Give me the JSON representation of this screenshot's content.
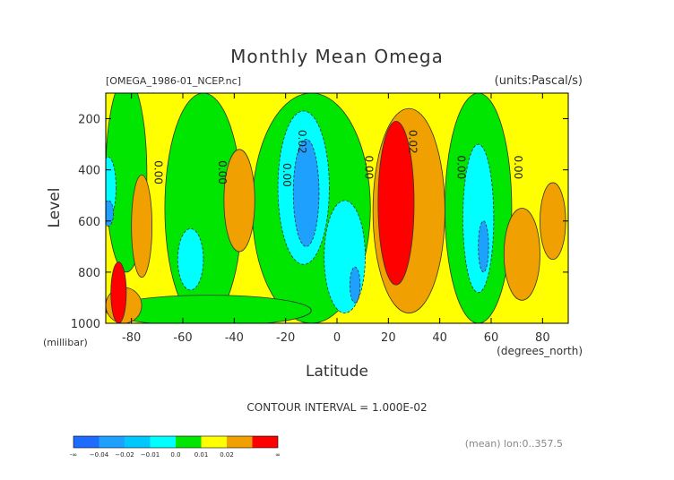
{
  "chart_data": {
    "type": "heatmap",
    "title": "Monthly Mean Omega",
    "file_label": "[OMEGA_1986-01_NCEP.nc]",
    "units_label": "(units:Pascal/s)",
    "xlabel": "Latitude",
    "xunit": "(degrees_north)",
    "ylabel": "Level",
    "yunit": "(millibar)",
    "x_ticks": [
      "-80",
      "-60",
      "-40",
      "-20",
      "0",
      "20",
      "40",
      "60",
      "80"
    ],
    "x_tick_values": [
      -80,
      -60,
      -40,
      -20,
      0,
      20,
      40,
      60,
      80
    ],
    "y_ticks": [
      "200",
      "400",
      "600",
      "800",
      "1000"
    ],
    "y_tick_values": [
      200,
      400,
      600,
      800,
      1000
    ],
    "xlim": [
      -90,
      90
    ],
    "ylim": [
      1000,
      100
    ],
    "contour_interval_text": "CONTOUR INTERVAL = 1.000E-02",
    "footer_right": "(mean) lon:0..357.5",
    "contour_labels": [
      {
        "text": "0.00",
        "lat": -71,
        "level": 410
      },
      {
        "text": "0.00",
        "lat": -46,
        "level": 410
      },
      {
        "text": "0.00",
        "lat": -21,
        "level": 420
      },
      {
        "text": "0.02",
        "lat": -15,
        "level": 290
      },
      {
        "text": "0.00",
        "lat": 11,
        "level": 390
      },
      {
        "text": "0.02",
        "lat": 28,
        "level": 290
      },
      {
        "text": "0.00",
        "lat": 47,
        "level": 390
      },
      {
        "text": "0.00",
        "lat": 69,
        "level": 390
      }
    ],
    "color_levels": [
      {
        "label": "-∞",
        "color": "#1e6cff"
      },
      {
        "label": "−0.04",
        "color": "#1ea0ff"
      },
      {
        "label": "−0.02",
        "color": "#00c8ff"
      },
      {
        "label": "−0.01",
        "color": "#00ffff"
      },
      {
        "label": "0.0",
        "color": "#00e600"
      },
      {
        "label": "0.01",
        "color": "#ffff00"
      },
      {
        "label": "0.02",
        "color": "#f0a000"
      },
      {
        "label": "∞",
        "color": "#ff0000"
      }
    ],
    "regions": [
      {
        "value_class": "yellow",
        "color": "#ffff00",
        "lat_min": -90,
        "lat_max": 90,
        "level_min": 100,
        "level_max": 1000
      },
      {
        "value_class": "green",
        "color": "#00e600",
        "lat": -82,
        "level": 420,
        "rx_deg": 8,
        "ry_mb": 380
      },
      {
        "value_class": "green",
        "color": "#00e600",
        "lat": -52,
        "level": 550,
        "rx_deg": 15,
        "ry_mb": 450
      },
      {
        "value_class": "green",
        "color": "#00e600",
        "lat": -10,
        "level": 550,
        "rx_deg": 23,
        "ry_mb": 450
      },
      {
        "value_class": "green",
        "color": "#00e600",
        "lat": 55,
        "level": 550,
        "rx_deg": 13,
        "ry_mb": 450
      },
      {
        "value_class": "green",
        "color": "#00e600",
        "lat": -50,
        "level": 950,
        "rx_deg": 40,
        "ry_mb": 60
      },
      {
        "value_class": "orange",
        "color": "#f0a000",
        "lat": -38,
        "level": 520,
        "rx_deg": 6,
        "ry_mb": 200
      },
      {
        "value_class": "orange",
        "color": "#f0a000",
        "lat": -76,
        "level": 620,
        "rx_deg": 4,
        "ry_mb": 200
      },
      {
        "value_class": "orange",
        "color": "#f0a000",
        "lat": 28,
        "level": 560,
        "rx_deg": 14,
        "ry_mb": 400
      },
      {
        "value_class": "orange",
        "color": "#f0a000",
        "lat": 72,
        "level": 730,
        "rx_deg": 7,
        "ry_mb": 180
      },
      {
        "value_class": "orange",
        "color": "#f0a000",
        "lat": 84,
        "level": 600,
        "rx_deg": 5,
        "ry_mb": 150
      },
      {
        "value_class": "orange",
        "color": "#f0a000",
        "lat": -83,
        "level": 930,
        "rx_deg": 7,
        "ry_mb": 70
      },
      {
        "value_class": "cyan",
        "color": "#00ffff",
        "lat": -13,
        "level": 470,
        "rx_deg": 10,
        "ry_mb": 300
      },
      {
        "value_class": "cyan",
        "color": "#00ffff",
        "lat": 3,
        "level": 740,
        "rx_deg": 8,
        "ry_mb": 220
      },
      {
        "value_class": "cyan",
        "color": "#00ffff",
        "lat": -57,
        "level": 750,
        "rx_deg": 5,
        "ry_mb": 120
      },
      {
        "value_class": "cyan",
        "color": "#00ffff",
        "lat": 55,
        "level": 590,
        "rx_deg": 6,
        "ry_mb": 290
      },
      {
        "value_class": "cyan",
        "color": "#00ffff",
        "lat": -89,
        "level": 470,
        "rx_deg": 3,
        "ry_mb": 120
      },
      {
        "value_class": "blue",
        "color": "#1ea0ff",
        "lat": -12,
        "level": 490,
        "rx_deg": 5,
        "ry_mb": 210
      },
      {
        "value_class": "blue",
        "color": "#1ea0ff",
        "lat": 7,
        "level": 850,
        "rx_deg": 2,
        "ry_mb": 70
      },
      {
        "value_class": "blue",
        "color": "#1ea0ff",
        "lat": 57,
        "level": 700,
        "rx_deg": 2,
        "ry_mb": 100
      },
      {
        "value_class": "blue",
        "color": "#1ea0ff",
        "lat": -89,
        "level": 570,
        "rx_deg": 2,
        "ry_mb": 50
      },
      {
        "value_class": "red",
        "color": "#ff0000",
        "lat": 23,
        "level": 530,
        "rx_deg": 7,
        "ry_mb": 320
      },
      {
        "value_class": "red",
        "color": "#ff0000",
        "lat": -85,
        "level": 880,
        "rx_deg": 3,
        "ry_mb": 120
      }
    ]
  }
}
